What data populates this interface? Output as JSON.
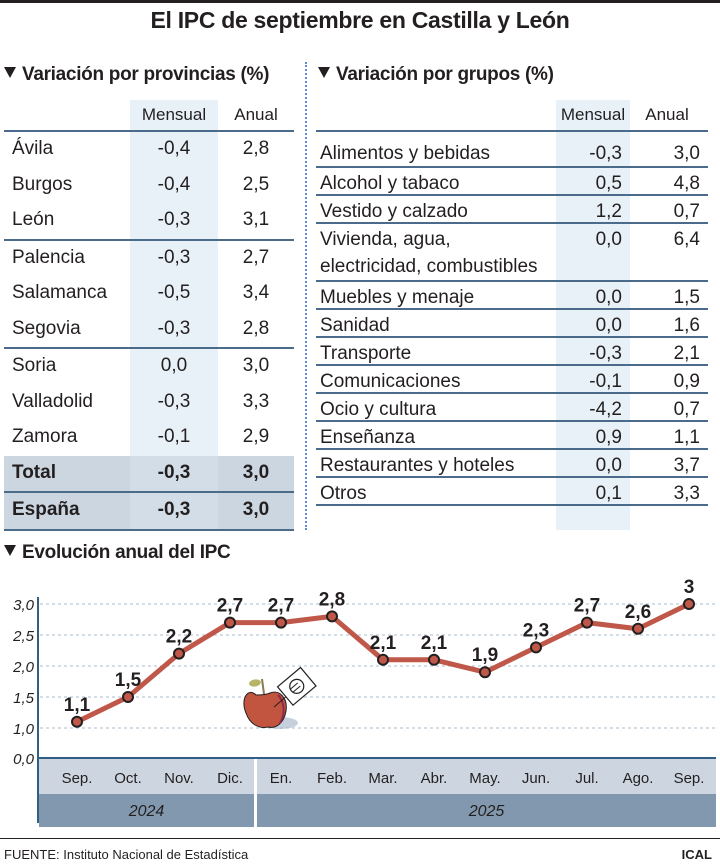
{
  "title": "El IPC de septiembre en Castilla y León",
  "provinces": {
    "title": "Variación por provincias (%)",
    "columns": [
      "Mensual",
      "Anual"
    ],
    "rows": [
      {
        "name": "Ávila",
        "mensual": "-0,4",
        "anual": "2,8"
      },
      {
        "name": "Burgos",
        "mensual": "-0,4",
        "anual": "2,5"
      },
      {
        "name": "León",
        "mensual": "-0,3",
        "anual": "3,1"
      },
      {
        "name": "Palencia",
        "mensual": "-0,3",
        "anual": "2,7"
      },
      {
        "name": "Salamanca",
        "mensual": "-0,5",
        "anual": "3,4"
      },
      {
        "name": "Segovia",
        "mensual": "-0,3",
        "anual": "2,8"
      },
      {
        "name": "Soria",
        "mensual": "0,0",
        "anual": "3,0"
      },
      {
        "name": "Valladolid",
        "mensual": "-0,3",
        "anual": "3,3"
      },
      {
        "name": "Zamora",
        "mensual": "-0,1",
        "anual": "2,9"
      }
    ],
    "total": {
      "name": "Total",
      "mensual": "-0,3",
      "anual": "3,0"
    },
    "spain": {
      "name": "España",
      "mensual": "-0,3",
      "anual": "3,0"
    }
  },
  "groups": {
    "title": "Variación por grupos (%)",
    "columns": [
      "Mensual",
      "Anual"
    ],
    "rows": [
      {
        "name": "Alimentos y bebidas",
        "mensual": "-0,3",
        "anual": "3,0"
      },
      {
        "name": "Alcohol y tabaco",
        "mensual": "0,5",
        "anual": "4,8"
      },
      {
        "name": "Vestido y calzado",
        "mensual": "1,2",
        "anual": "0,7"
      },
      {
        "name": "Vivienda, agua,",
        "name2": "electricidad, combustibles",
        "mensual": "0,0",
        "anual": "6,4"
      },
      {
        "name": "Muebles y menaje",
        "mensual": "0,0",
        "anual": "1,5"
      },
      {
        "name": "Sanidad",
        "mensual": "0,0",
        "anual": "1,6"
      },
      {
        "name": "Transporte",
        "mensual": "-0,3",
        "anual": "2,1"
      },
      {
        "name": "Comunicaciones",
        "mensual": "-0,1",
        "anual": "0,9"
      },
      {
        "name": "Ocio y cultura",
        "mensual": "-4,2",
        "anual": "0,7"
      },
      {
        "name": "Enseñanza",
        "mensual": "0,9",
        "anual": "1,1"
      },
      {
        "name": "Restaurantes y hoteles",
        "mensual": "0,0",
        "anual": "3,7"
      },
      {
        "name": "Otros",
        "mensual": "0,1",
        "anual": "3,3"
      }
    ]
  },
  "chart_data": {
    "type": "line",
    "title": "Evolución anual del IPC",
    "xlabel": "",
    "ylabel": "",
    "categories": [
      "Sep.",
      "Oct.",
      "Nov.",
      "Dic.",
      "En.",
      "Feb.",
      "Mar.",
      "Abr.",
      "May.",
      "Jun.",
      "Jul.",
      "Ago.",
      "Sep."
    ],
    "values": [
      1.1,
      1.5,
      2.2,
      2.7,
      2.7,
      2.8,
      2.1,
      2.1,
      1.9,
      2.3,
      2.7,
      2.6,
      3.0
    ],
    "data_labels": [
      "1,1",
      "1,5",
      "2,2",
      "2,7",
      "2,7",
      "2,8",
      "2,1",
      "2,1",
      "1,9",
      "2,3",
      "2,7",
      "2,6",
      "3"
    ],
    "yticks": [
      "0,0",
      "1,0",
      "1,5",
      "2,0",
      "2,5",
      "3,0"
    ],
    "ytick_values": [
      0,
      1.0,
      1.5,
      2.0,
      2.5,
      3.0
    ],
    "ylim": [
      0,
      3.0
    ],
    "grid": true,
    "year_groups": [
      {
        "label": "2024",
        "count": 4
      },
      {
        "label": "2025",
        "count": 9
      }
    ],
    "line_color": "#c0584a"
  },
  "footer": {
    "source": "FUENTE: Instituto Nacional de Estadística",
    "credit": "ICAL"
  }
}
